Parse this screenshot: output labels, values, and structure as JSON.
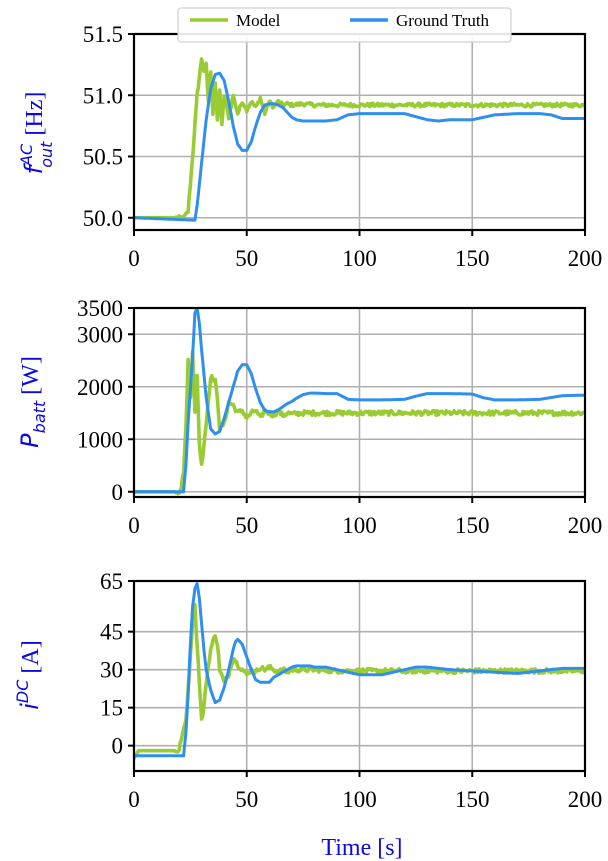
{
  "colors": {
    "model": "#99cc33",
    "ground_truth": "#2f8fef",
    "axis_label": "#0a0ae0"
  },
  "legend": {
    "model": "Model",
    "ground_truth": "Ground Truth"
  },
  "xlabel": "Time [s]",
  "ylabels": {
    "freq_base": "f",
    "freq_sup": "AC",
    "freq_sub": "out",
    "freq_unit": " [Hz]",
    "pbatt_base": "P",
    "pbatt_sub": "batt",
    "pbatt_unit": " [W]",
    "idc_base": "i",
    "idc_sup": "DC",
    "idc_unit": " [A]"
  },
  "chart_data": [
    {
      "type": "line",
      "id": "freq",
      "xlim": [
        0,
        200
      ],
      "ylim": [
        49.9,
        51.5
      ],
      "xticks": [
        0,
        50,
        100,
        150,
        200
      ],
      "yticks": [
        50.0,
        50.5,
        51.0,
        51.5
      ],
      "ytick_labels": [
        "50.0",
        "50.5",
        "51.0",
        "51.5"
      ],
      "grid": true,
      "legend": "top-center",
      "series": [
        {
          "name": "Model",
          "noise": 0.015,
          "x": [
            0,
            22,
            24,
            26,
            28,
            30,
            31,
            32,
            33,
            34,
            35,
            36,
            37,
            38,
            39,
            40,
            42,
            44,
            46,
            48,
            50,
            52,
            54,
            56,
            58,
            60,
            62,
            64,
            66,
            68,
            70,
            75,
            80,
            90,
            100,
            120,
            140,
            160,
            180,
            200
          ],
          "y": [
            50.0,
            50.0,
            50.05,
            50.5,
            51.0,
            51.3,
            51.2,
            51.25,
            50.95,
            51.2,
            50.85,
            51.1,
            50.8,
            51.05,
            50.75,
            51.0,
            50.82,
            51.0,
            50.85,
            50.95,
            50.88,
            50.95,
            50.9,
            50.98,
            50.85,
            50.95,
            50.9,
            50.95,
            50.92,
            50.93,
            50.92,
            50.93,
            50.92,
            50.92,
            50.92,
            50.92,
            50.92,
            50.92,
            50.92,
            50.92
          ]
        },
        {
          "name": "Ground Truth",
          "noise": 0,
          "x": [
            0,
            27,
            28,
            30,
            32,
            34,
            36,
            38,
            40,
            42,
            44,
            46,
            48,
            50,
            52,
            54,
            56,
            58,
            60,
            62,
            64,
            66,
            68,
            70,
            72,
            75,
            78,
            80,
            85,
            90,
            95,
            100,
            105,
            110,
            120,
            130,
            135,
            140,
            150,
            160,
            170,
            180,
            185,
            190,
            200
          ],
          "y": [
            50.0,
            49.98,
            50.1,
            50.45,
            50.8,
            51.05,
            51.17,
            51.18,
            51.12,
            50.95,
            50.75,
            50.6,
            50.55,
            50.55,
            50.62,
            50.75,
            50.86,
            50.92,
            50.93,
            50.93,
            50.92,
            50.9,
            50.86,
            50.82,
            50.8,
            50.79,
            50.79,
            50.79,
            50.79,
            50.8,
            50.84,
            50.85,
            50.85,
            50.85,
            50.85,
            50.8,
            50.79,
            50.8,
            50.8,
            50.84,
            50.85,
            50.85,
            50.84,
            50.81,
            50.81
          ]
        }
      ]
    },
    {
      "type": "line",
      "id": "pbatt",
      "xlim": [
        0,
        200
      ],
      "ylim": [
        -100,
        3500
      ],
      "xticks": [
        0,
        50,
        100,
        150,
        200
      ],
      "yticks": [
        0,
        1000,
        2000,
        3000,
        3500
      ],
      "ytick_labels": [
        "0",
        "1000",
        "2000",
        "3000",
        "3500"
      ],
      "grid": true,
      "series": [
        {
          "name": "Model",
          "noise": 45,
          "x": [
            0,
            20,
            21,
            22,
            23,
            24,
            25,
            26,
            27,
            28,
            29,
            30,
            32,
            34,
            36,
            37,
            38,
            40,
            42,
            44,
            46,
            48,
            50,
            52,
            54,
            56,
            58,
            60,
            62,
            64,
            66,
            68,
            70,
            75,
            80,
            90,
            100,
            120,
            140,
            160,
            180,
            200
          ],
          "y": [
            0,
            0,
            100,
            400,
            1200,
            2500,
            1800,
            2700,
            1500,
            2200,
            900,
            500,
            1300,
            2200,
            2100,
            1800,
            1200,
            1300,
            1700,
            1650,
            1500,
            1550,
            1400,
            1500,
            1550,
            1400,
            1550,
            1500,
            1450,
            1550,
            1450,
            1500,
            1480,
            1500,
            1500,
            1500,
            1500,
            1500,
            1500,
            1500,
            1500,
            1500
          ]
        },
        {
          "name": "Ground Truth",
          "noise": 0,
          "x": [
            0,
            22,
            23,
            24,
            26,
            27,
            28,
            29,
            30,
            32,
            34,
            36,
            38,
            40,
            42,
            44,
            46,
            48,
            50,
            52,
            54,
            56,
            58,
            60,
            62,
            64,
            66,
            68,
            70,
            72,
            75,
            78,
            80,
            85,
            90,
            95,
            100,
            105,
            110,
            120,
            125,
            130,
            140,
            150,
            155,
            160,
            170,
            180,
            190,
            200
          ],
          "y": [
            0,
            0,
            500,
            1300,
            2600,
            3400,
            3500,
            3200,
            2700,
            1800,
            1200,
            1100,
            1150,
            1400,
            1700,
            2000,
            2300,
            2420,
            2420,
            2250,
            1950,
            1700,
            1550,
            1520,
            1520,
            1560,
            1620,
            1680,
            1720,
            1780,
            1850,
            1880,
            1880,
            1870,
            1870,
            1760,
            1750,
            1750,
            1750,
            1760,
            1820,
            1870,
            1870,
            1860,
            1790,
            1750,
            1750,
            1760,
            1830,
            1840
          ]
        }
      ]
    },
    {
      "type": "line",
      "id": "idc",
      "xlim": [
        0,
        200
      ],
      "ylim": [
        -10,
        65
      ],
      "xticks": [
        0,
        50,
        100,
        150,
        200
      ],
      "yticks": [
        0,
        15,
        30,
        45,
        65
      ],
      "ytick_labels": [
        "0",
        "15",
        "30",
        "45",
        "65"
      ],
      "grid": true,
      "series": [
        {
          "name": "Model",
          "noise": 0.9,
          "x": [
            0,
            2,
            20,
            21,
            22,
            23,
            24,
            25,
            26,
            27,
            28,
            29,
            30,
            31,
            32,
            34,
            36,
            37,
            38,
            40,
            42,
            44,
            46,
            48,
            50,
            52,
            54,
            56,
            58,
            60,
            62,
            64,
            66,
            68,
            70,
            75,
            80,
            90,
            100,
            120,
            140,
            160,
            180,
            200
          ],
          "y": [
            -5,
            -2,
            -2,
            3,
            6,
            10,
            22,
            35,
            50,
            55,
            40,
            25,
            10,
            15,
            25,
            38,
            44,
            40,
            30,
            25,
            28,
            35,
            32,
            30,
            28,
            30,
            29,
            31,
            30,
            31,
            30,
            29,
            30,
            29,
            30,
            30,
            30,
            29.5,
            29.5,
            29.5,
            29.5,
            29.5,
            29.5,
            29.5
          ]
        },
        {
          "name": "Ground Truth",
          "noise": 0,
          "x": [
            0,
            22,
            23,
            24,
            25,
            26,
            27,
            28,
            29,
            30,
            31,
            32,
            34,
            36,
            38,
            40,
            42,
            44,
            45,
            46,
            48,
            50,
            52,
            54,
            56,
            58,
            60,
            62,
            64,
            66,
            68,
            70,
            72,
            75,
            78,
            80,
            85,
            90,
            95,
            100,
            105,
            110,
            120,
            125,
            130,
            140,
            150,
            160,
            170,
            180,
            190,
            200
          ],
          "y": [
            -4,
            -4,
            5,
            20,
            40,
            55,
            62,
            64,
            58,
            48,
            38,
            30,
            22,
            17,
            18,
            23,
            30,
            38,
            41,
            42,
            40,
            35,
            30,
            26,
            25,
            25,
            25,
            27,
            28,
            29,
            30,
            31,
            31.5,
            31.5,
            31.5,
            31,
            31,
            30,
            29,
            28,
            28,
            28,
            30,
            31,
            31,
            30,
            29.5,
            29,
            28.5,
            29.5,
            30.5,
            30.5
          ]
        }
      ]
    }
  ]
}
